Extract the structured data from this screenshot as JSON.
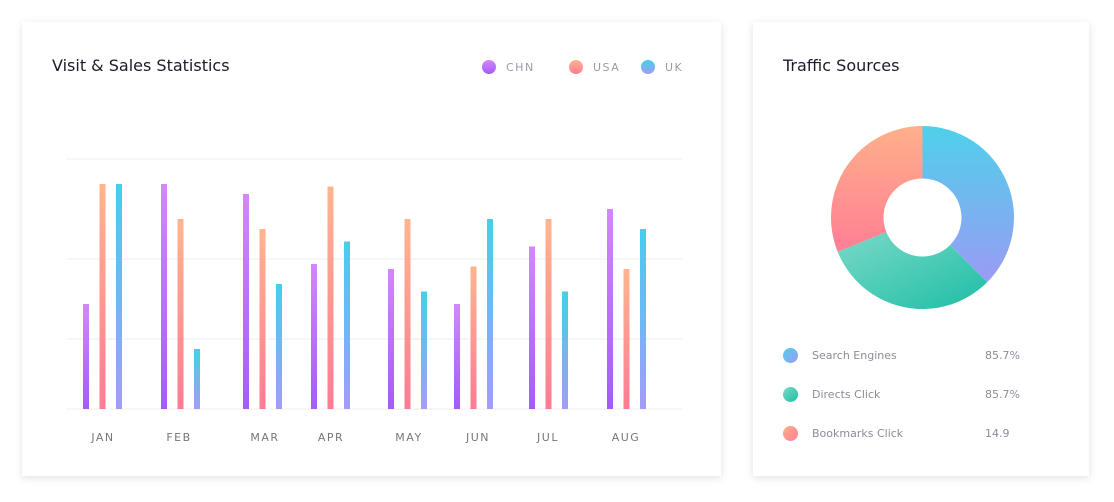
{
  "visit_card": {
    "title": "Visit & Sales Statistics"
  },
  "traffic_card": {
    "title": "Traffic Sources",
    "sources": [
      {
        "label": "Search Engines",
        "value": "85.7%",
        "colors": [
          "#4fd0ea",
          "#9a9bf5"
        ]
      },
      {
        "label": "Directs Click",
        "value": "85.7%",
        "colors": [
          "#7ad9c8",
          "#1ebea5"
        ]
      },
      {
        "label": "Bookmarks Click",
        "value": "14.9",
        "colors": [
          "#ffb08a",
          "#ff7e95"
        ]
      }
    ]
  },
  "chart_data": [
    {
      "type": "bar",
      "title": "Visit & Sales Statistics",
      "categories": [
        "JAN",
        "FEB",
        "MAR",
        "APR",
        "MAY",
        "JUN",
        "JUL",
        "AUG"
      ],
      "series": [
        {
          "name": "CHN",
          "values": [
            42,
            90,
            86,
            58,
            56,
            42,
            65,
            80
          ],
          "colors": [
            "#d487fa",
            "#a35cf8"
          ]
        },
        {
          "name": "USA",
          "values": [
            90,
            76,
            72,
            89,
            76,
            57,
            76,
            56
          ],
          "colors": [
            "#ffb58f",
            "#ff7b93"
          ]
        },
        {
          "name": "UK",
          "values": [
            90,
            24,
            50,
            67,
            47,
            76,
            47,
            72
          ],
          "colors": [
            "#42d1e8",
            "#a39df5"
          ]
        }
      ],
      "ylim": [
        0,
        100
      ],
      "grid": true,
      "legend": "top-right"
    },
    {
      "type": "pie",
      "title": "Traffic Sources",
      "donut": true,
      "labels": [
        "Search Engines",
        "Directs Click",
        "Bookmarks Click"
      ],
      "values": [
        37.5,
        31.4,
        31.1
      ]
    }
  ]
}
